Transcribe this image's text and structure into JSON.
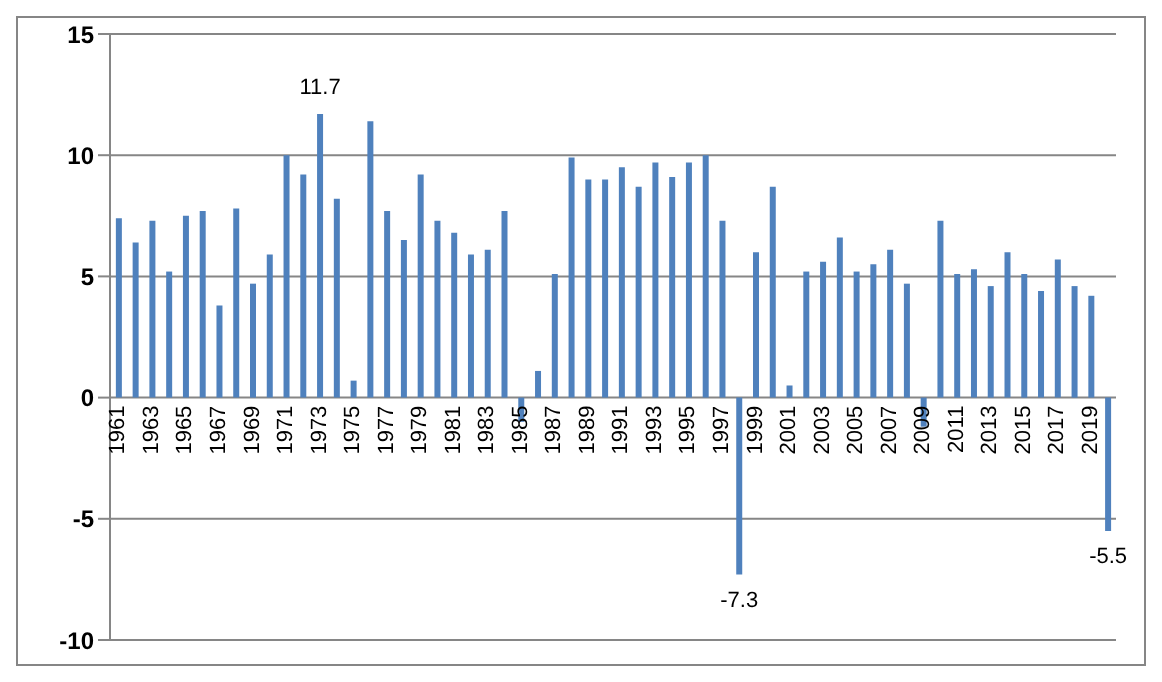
{
  "chart_data": {
    "type": "bar",
    "categories": [
      "1961",
      null,
      "1963",
      null,
      "1965",
      null,
      "1967",
      null,
      "1969",
      null,
      "1971",
      null,
      "1973",
      null,
      "1975",
      null,
      "1977",
      null,
      "1979",
      null,
      "1981",
      null,
      "1983",
      null,
      "1985",
      null,
      "1987",
      null,
      "1989",
      null,
      "1991",
      null,
      "1993",
      null,
      "1995",
      null,
      "1997",
      null,
      "1999",
      null,
      "2001",
      null,
      "2003",
      null,
      "2005",
      null,
      "2007",
      null,
      "2009",
      null,
      "2011",
      null,
      "2013",
      null,
      "2015",
      null,
      "2017",
      null,
      "2019",
      null
    ],
    "values": [
      7.4,
      6.4,
      7.3,
      5.2,
      7.5,
      7.7,
      3.8,
      7.8,
      4.7,
      5.9,
      10.0,
      9.2,
      11.7,
      8.2,
      0.7,
      11.4,
      7.7,
      6.5,
      9.2,
      7.3,
      6.8,
      5.9,
      6.1,
      7.7,
      -1.0,
      1.1,
      5.1,
      9.9,
      9.0,
      9.0,
      9.5,
      8.7,
      9.7,
      9.1,
      9.7,
      10.0,
      7.3,
      -7.3,
      6.0,
      8.7,
      0.5,
      5.2,
      5.6,
      6.6,
      5.2,
      5.5,
      6.1,
      4.7,
      -1.2,
      7.3,
      5.1,
      5.3,
      4.6,
      6.0,
      5.1,
      4.4,
      5.7,
      4.6,
      4.2,
      -5.5
    ],
    "value_labels": [
      null,
      null,
      null,
      null,
      null,
      null,
      null,
      null,
      null,
      null,
      null,
      null,
      "11.7",
      null,
      null,
      null,
      null,
      null,
      null,
      null,
      null,
      null,
      null,
      null,
      null,
      null,
      null,
      null,
      null,
      null,
      null,
      null,
      null,
      null,
      null,
      null,
      null,
      "-7.3",
      null,
      null,
      null,
      null,
      null,
      null,
      null,
      null,
      null,
      null,
      null,
      null,
      null,
      null,
      null,
      null,
      null,
      null,
      null,
      null,
      null,
      "-5.5"
    ],
    "color": "#4f81bd",
    "ylim": [
      -10,
      15
    ],
    "yticks": [
      -10,
      -5,
      0,
      5,
      10,
      15
    ],
    "grid": "y"
  }
}
